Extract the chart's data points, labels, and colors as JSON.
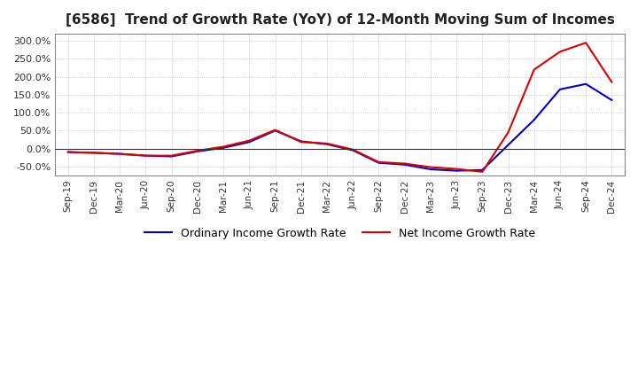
{
  "title": "[6586]  Trend of Growth Rate (YoY) of 12-Month Moving Sum of Incomes",
  "title_fontsize": 11,
  "ylim": [
    -75,
    320
  ],
  "yticks": [
    -50,
    0,
    50,
    100,
    150,
    200,
    250,
    300
  ],
  "background_color": "#ffffff",
  "plot_bg_color": "#ffffff",
  "grid_color": "#aaaaaa",
  "legend_labels": [
    "Ordinary Income Growth Rate",
    "Net Income Growth Rate"
  ],
  "line_colors": [
    "#0000cc",
    "#dd0000"
  ],
  "x_labels": [
    "Sep-19",
    "Dec-19",
    "Mar-20",
    "Jun-20",
    "Sep-20",
    "Dec-20",
    "Mar-21",
    "Jun-21",
    "Sep-21",
    "Dec-21",
    "Mar-22",
    "Jun-22",
    "Sep-22",
    "Dec-22",
    "Mar-23",
    "Jun-23",
    "Sep-23",
    "Dec-23",
    "Mar-24",
    "Jun-24",
    "Sep-24",
    "Dec-24"
  ],
  "ordinary_income": [
    -10,
    -12,
    -15,
    -20,
    -22,
    -8,
    2,
    18,
    50,
    20,
    12,
    -5,
    -40,
    -45,
    -58,
    -62,
    -60,
    10,
    80,
    165,
    180,
    135
  ],
  "net_income": [
    -10,
    -12,
    -15,
    -20,
    -20,
    -6,
    5,
    22,
    52,
    18,
    14,
    -3,
    -38,
    -42,
    -52,
    -57,
    -65,
    45,
    220,
    270,
    295,
    185
  ]
}
